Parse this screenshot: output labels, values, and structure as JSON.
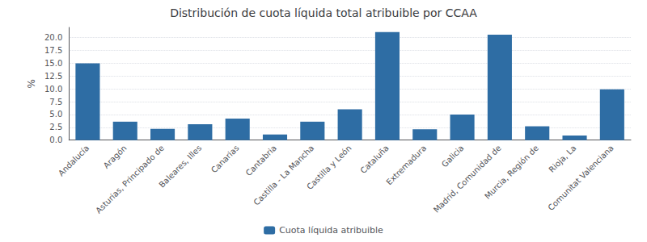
{
  "chart_data": {
    "type": "bar",
    "title": "Distribución de cuota líquida total atribuible por CCAA",
    "categories": [
      "Andalucía",
      "Aragón",
      "Asturias, Principado de",
      "Baleares, Illes",
      "Canarias",
      "Cantabria",
      "Castilla - La Mancha",
      "Castilla y León",
      "Cataluña",
      "Extremadura",
      "Galicia",
      "Madrid, Comunidad de",
      "Murcia, Región de",
      "Rioja, La",
      "Comunitat Valenciana"
    ],
    "series": [
      {
        "name": "Cuota líquida atribuible",
        "color": "#2E6DA4",
        "values": [
          15.0,
          3.6,
          2.2,
          3.1,
          4.2,
          1.1,
          3.6,
          6.0,
          21.1,
          2.1,
          5.0,
          20.6,
          2.7,
          0.9,
          9.9
        ]
      }
    ],
    "ylabel": "%",
    "ylim": [
      0,
      22
    ],
    "yticks": [
      {
        "value": 0,
        "label": "0.0"
      },
      2.5,
      {
        "value": 5,
        "label": "5.0"
      },
      7.5,
      {
        "value": 10,
        "label": "10.0"
      },
      12.5,
      {
        "value": 15,
        "label": "15.0"
      },
      17.5,
      {
        "value": 20,
        "label": "20.0"
      }
    ],
    "grid": true,
    "legend": "bottom"
  }
}
